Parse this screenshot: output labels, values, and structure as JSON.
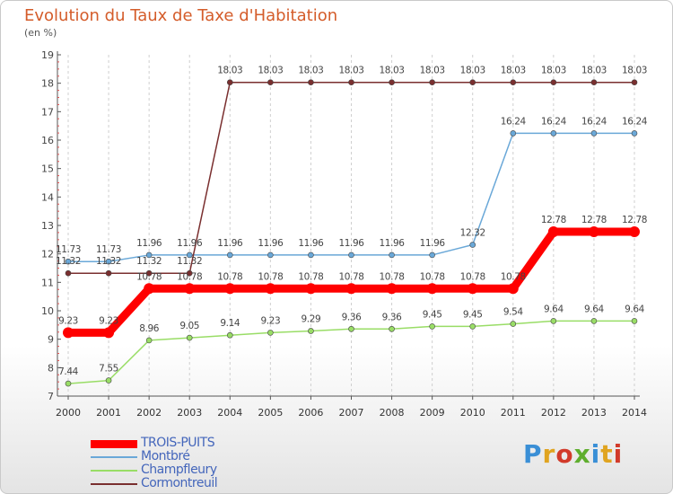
{
  "title": "Evolution du Taux de Taxe d'Habitation",
  "unit_label": "(en %)",
  "brand": {
    "text": "Proxiti",
    "letter_colors": [
      "#3a8fd6",
      "#e0a420",
      "#d23a2a",
      "#5fae2e",
      "#3a8fd6",
      "#e0a420",
      "#d23a2a"
    ]
  },
  "chart_data": {
    "type": "line",
    "title": "Evolution du Taux de Taxe d'Habitation",
    "ylabel": "(en %)",
    "xlabel": "",
    "ylim": [
      7,
      19
    ],
    "yticks": [
      7,
      8,
      9,
      10,
      11,
      12,
      13,
      14,
      15,
      16,
      17,
      18,
      19
    ],
    "x": [
      "2000",
      "2001",
      "2002",
      "2003",
      "2004",
      "2005",
      "2006",
      "2007",
      "2008",
      "2009",
      "2010",
      "2011",
      "2012",
      "2013",
      "2014"
    ],
    "grid": "vertical dashed",
    "legend": "bottom-left",
    "series": [
      {
        "name": "TROIS-PUITS",
        "color": "#ff0000",
        "emphasis": true,
        "values": [
          9.23,
          9.23,
          10.78,
          10.78,
          10.78,
          10.78,
          10.78,
          10.78,
          10.78,
          10.78,
          10.78,
          10.78,
          12.78,
          12.78,
          12.78
        ],
        "labels": [
          "9.23",
          "9.23",
          "10.78",
          "10.78",
          "10.78",
          "10.78",
          "10.78",
          "10.78",
          "10.78",
          "10.78",
          "10.78",
          "10.78",
          "12.78",
          "12.78",
          "12.78"
        ]
      },
      {
        "name": "Montbré",
        "color": "#6aa8d8",
        "emphasis": false,
        "values": [
          11.73,
          11.73,
          11.96,
          11.96,
          11.96,
          11.96,
          11.96,
          11.96,
          11.96,
          11.96,
          12.32,
          16.24,
          16.24,
          16.24,
          16.24
        ],
        "labels": [
          "11.73",
          "11.73",
          "11.96",
          "11.96",
          "11.96",
          "11.96",
          "11.96",
          "11.96",
          "11.96",
          "11.96",
          "12.32",
          "16.24",
          "16.24",
          "16.24",
          "16.24"
        ]
      },
      {
        "name": "Champfleury",
        "color": "#99dd66",
        "emphasis": false,
        "values": [
          7.44,
          7.55,
          8.96,
          9.05,
          9.14,
          9.23,
          9.29,
          9.36,
          9.36,
          9.45,
          9.45,
          9.54,
          9.64,
          9.64,
          9.64
        ],
        "labels": [
          "7.44",
          "7.55",
          "8.96",
          "9.05",
          "9.14",
          "9.23",
          "9.29",
          "9.36",
          "9.36",
          "9.45",
          "9.45",
          "9.54",
          "9.64",
          "9.64",
          "9.64"
        ]
      },
      {
        "name": "Cormontreuil",
        "color": "#7a2f2f",
        "emphasis": false,
        "values": [
          11.32,
          11.32,
          11.32,
          11.32,
          18.03,
          18.03,
          18.03,
          18.03,
          18.03,
          18.03,
          18.03,
          18.03,
          18.03,
          18.03,
          18.03
        ],
        "labels": [
          "11.32",
          "11.32",
          "11.32",
          "11.32",
          "18.03",
          "18.03",
          "18.03",
          "18.03",
          "18.03",
          "18.03",
          "18.03",
          "18.03",
          "18.03",
          "18.03",
          "18.03"
        ]
      }
    ]
  }
}
